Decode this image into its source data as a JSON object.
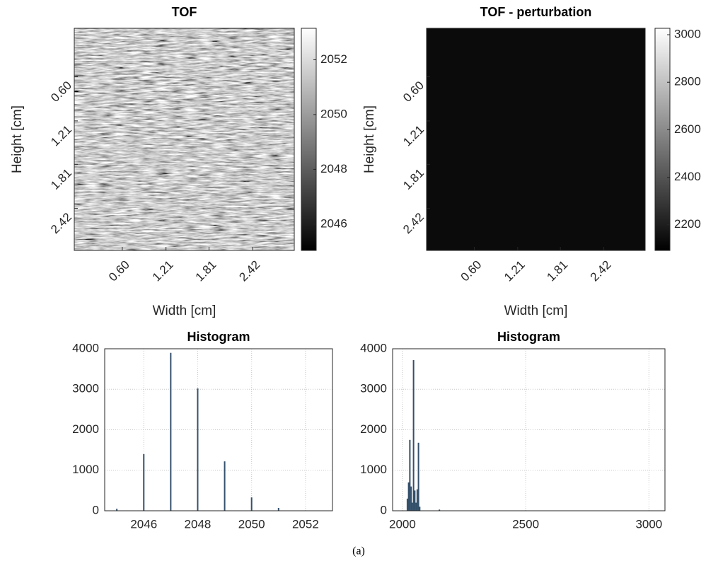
{
  "caption": "(a)",
  "chart_data": [
    {
      "type": "heatmap",
      "title": "TOF",
      "xlabel": "Width [cm]",
      "ylabel": "Height [cm]",
      "colormap": "gray",
      "xlim": [
        -0.07,
        3.0
      ],
      "ylim": [
        -0.07,
        3.0
      ],
      "xticks": [
        {
          "value": 0.6,
          "label": "0.60"
        },
        1.21,
        1.81,
        2.42
      ],
      "yticks": [
        {
          "value": 0.6,
          "label": "0.60"
        },
        1.21,
        1.81,
        2.42
      ],
      "clim": [
        2045.04,
        2053.15
      ],
      "cticks": [
        2046,
        2048,
        2050,
        2052
      ]
    },
    {
      "type": "heatmap",
      "title": "TOF - perturbation",
      "xlabel": "Width [cm]",
      "ylabel": "Height [cm]",
      "colormap": "gray",
      "xlim": [
        -0.07,
        3.0
      ],
      "ylim": [
        -0.07,
        3.0
      ],
      "xticks": [
        {
          "value": 0.6,
          "label": "0.60"
        },
        1.21,
        1.81,
        2.42
      ],
      "yticks": [
        {
          "value": 0.6,
          "label": "0.60"
        },
        1.21,
        1.81,
        2.42
      ],
      "clim": [
        2092,
        3027
      ],
      "cticks": [
        2200,
        2400,
        2600,
        2800,
        3000
      ]
    },
    {
      "type": "bar",
      "title": "Histogram",
      "color": "#34506b",
      "grid": true,
      "x": [
        2045,
        2046,
        2047,
        2048,
        2049,
        2050,
        2051
      ],
      "values": [
        50,
        1400,
        3900,
        3020,
        1220,
        330,
        70
      ],
      "xlim": [
        2044.55,
        2053
      ],
      "ylim": [
        0,
        4000
      ],
      "xticks": [
        2046,
        2048,
        2050,
        2052
      ],
      "yticks": [
        0,
        1000,
        2000,
        3000,
        4000
      ]
    },
    {
      "type": "bar",
      "title": "Histogram",
      "color": "#34506b",
      "grid": true,
      "x": [
        2020,
        2025,
        2030,
        2035,
        2040,
        2045,
        2050,
        2055,
        2060,
        2065,
        2070,
        2150
      ],
      "values": [
        300,
        700,
        1750,
        600,
        200,
        3720,
        500,
        200,
        530,
        1680,
        100,
        30
      ],
      "xlim": [
        1960,
        3065
      ],
      "ylim": [
        0,
        4000
      ],
      "xticks": [
        2000,
        2500,
        3000
      ],
      "yticks": [
        0,
        1000,
        2000,
        3000,
        4000
      ]
    }
  ]
}
